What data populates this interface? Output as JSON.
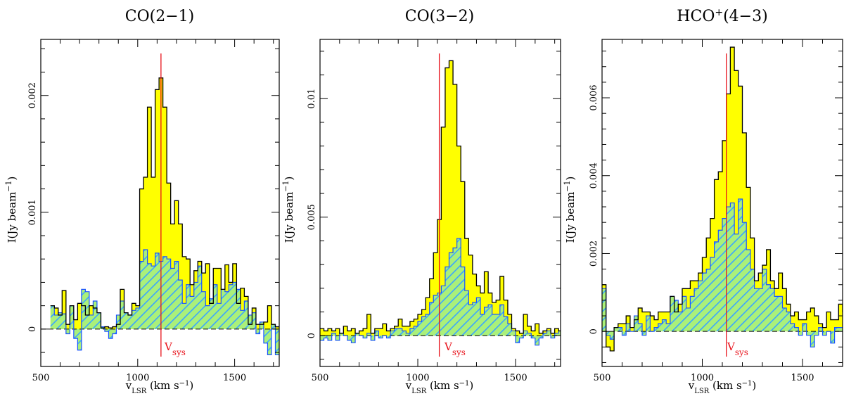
{
  "chart_data": [
    {
      "type": "step-area",
      "title": "CO(2−1)",
      "title_main": "CO(2−1)",
      "title_sup": "",
      "title_tail": "",
      "xlabel_main": "v",
      "xlabel_sub": "LSR",
      "xlabel_tail": " (km s",
      "xlabel_exp": "−1",
      "xlabel_close": ")",
      "ylabel_main": "I(Jy beam",
      "ylabel_exp": "−1",
      "ylabel_close": ")",
      "xlim": [
        500,
        1730
      ],
      "ylim": [
        -0.00032,
        0.00248
      ],
      "xticks": [
        500,
        1000,
        1500
      ],
      "xtick_labels": [
        "500",
        "1000",
        "1500"
      ],
      "yticks": [
        0,
        0.001,
        0.002
      ],
      "ytick_labels": [
        "0",
        "0.001",
        "0.002"
      ],
      "vsys": 1120,
      "vsys_label_main": "V",
      "vsys_label_sub": "sys",
      "x_start": 550,
      "x_step": 20,
      "series": [
        {
          "name": "total",
          "color": "#000000",
          "fill": "#ffff00",
          "values": [
            0.0002,
            0.00018,
            0.00012,
            0.00033,
            4e-05,
            0.0002,
            8e-05,
            0.00022,
            0.0002,
            0.00012,
            0.0002,
            0.00018,
            0.00014,
            1e-05,
            2e-05,
            1e-05,
            2e-05,
            4e-05,
            0.00034,
            0.00014,
            0.00012,
            0.00022,
            0.0002,
            0.0012,
            0.0013,
            0.0019,
            0.0013,
            0.00205,
            0.00215,
            0.0019,
            0.00125,
            0.0009,
            0.0011,
            0.0009,
            0.00062,
            0.0006,
            0.00038,
            0.0005,
            0.00058,
            0.00048,
            0.00056,
            0.00022,
            0.00052,
            0.00052,
            0.00034,
            0.00055,
            0.0004,
            0.00056,
            0.00022,
            0.00035,
            0.00028,
            4e-05,
            0.00018,
            4e-05,
            4e-05,
            6e-05,
            0.0002,
            4e-05,
            2e-05
          ]
        },
        {
          "name": "component",
          "color": "#1a53ff",
          "hatch": "#3aa6ff",
          "values": [
            0.0002,
            0.00012,
            0.00014,
            0.00013,
            -4e-05,
            0.0002,
            -8e-05,
            -0.00018,
            0.00034,
            0.00032,
            0.00012,
            0.00024,
            0.00014,
            2e-05,
            -2e-05,
            -8e-05,
            -4e-05,
            0.00012,
            0.00024,
            0.00014,
            0.00012,
            0.00016,
            0.00018,
            0.00058,
            0.00068,
            0.00056,
            0.00054,
            0.00065,
            0.00058,
            0.00062,
            0.0006,
            0.00052,
            0.00058,
            0.00042,
            0.00022,
            0.00038,
            0.00028,
            0.0004,
            0.00054,
            0.00032,
            0.0002,
            0.00026,
            0.00038,
            0.00022,
            0.00034,
            0.00032,
            0.00038,
            0.0004,
            0.00034,
            0.00016,
            0.00024,
            0.00012,
            0.00014,
            -4e-05,
            6e-05,
            -0.00012,
            -0.00022,
            4e-05,
            -0.00022
          ]
        }
      ]
    },
    {
      "type": "step-area",
      "title": "CO(3−2)",
      "title_main": "CO(3−2)",
      "title_sup": "",
      "title_tail": "",
      "xlabel_main": "v",
      "xlabel_sub": "LSR",
      "xlabel_tail": " (km s",
      "xlabel_exp": "−1",
      "xlabel_close": ")",
      "ylabel_main": "I(Jy beam",
      "ylabel_exp": "−1",
      "ylabel_close": ")",
      "xlim": [
        500,
        1730
      ],
      "ylim": [
        -0.0013,
        0.0125
      ],
      "xticks": [
        500,
        1000,
        1500
      ],
      "xtick_labels": [
        "500",
        "1000",
        "1500"
      ],
      "yticks": [
        0,
        0.005,
        0.01
      ],
      "ytick_labels": [
        "0",
        "0.005",
        "0.01"
      ],
      "vsys": 1110,
      "vsys_label_main": "V",
      "vsys_label_sub": "sys",
      "x_start": 500,
      "x_step": 20,
      "series": [
        {
          "name": "total",
          "color": "#000000",
          "fill": "#ffff00",
          "values": [
            0.0003,
            0.0002,
            0.0003,
            0.0002,
            0.0003,
            0.0001,
            0.0004,
            0.0002,
            0.0003,
            0.0001,
            0.0002,
            0.0003,
            0.0009,
            0.0001,
            0.0003,
            0.0003,
            0.0005,
            0.0002,
            0.0003,
            0.0004,
            0.0007,
            0.0004,
            0.0004,
            0.0006,
            0.0007,
            0.0009,
            0.0011,
            0.0016,
            0.0024,
            0.0035,
            0.0049,
            0.0088,
            0.0113,
            0.0116,
            0.0106,
            0.008,
            0.0065,
            0.0041,
            0.0034,
            0.0026,
            0.0021,
            0.0018,
            0.0027,
            0.0018,
            0.0014,
            0.0015,
            0.0025,
            0.0015,
            0.0009,
            0.0003,
            0.0002,
            0.0001,
            0.0009,
            0.0004,
            0.0002,
            0.0005,
            0.0001,
            0.0002,
            0.0003,
            0.0001,
            0.0003,
            0.0002
          ]
        },
        {
          "name": "component",
          "color": "#1a53ff",
          "hatch": "#3aa6ff",
          "values": [
            -0.0002,
            -0.0001,
            -0.0002,
            0.0001,
            -0.0002,
            0.0001,
            0,
            -0.0002,
            -0.0003,
            0.0001,
            0,
            -0.0001,
            0.0001,
            -0.0002,
            0.0002,
            -0.0001,
            0,
            -0.0001,
            0.0002,
            0.0003,
            0.0003,
            0.0002,
            0.0001,
            0.0003,
            0.0004,
            0.0006,
            0.0008,
            0.0009,
            0.0014,
            0.0017,
            0.0018,
            0.0021,
            0.0029,
            0.0035,
            0.0037,
            0.0041,
            0.0029,
            0.0019,
            0.0013,
            0.0014,
            0.0016,
            0.0009,
            0.0012,
            0.0013,
            0.0009,
            0.0009,
            0.0013,
            0.0008,
            0.0005,
            0.0002,
            -0.0003,
            -0.0001,
            0.0002,
            0.0001,
            -0.0001,
            -0.0004,
            -0.0001,
            0.0001,
            0.0002,
            -0.0001,
            0.0001,
            0.0002
          ]
        }
      ]
    },
    {
      "type": "step-area",
      "title": "HCO+(4−3)",
      "title_main": "HCO",
      "title_sup": "+",
      "title_tail": "(4−3)",
      "xlabel_main": "v",
      "xlabel_sub": "LSR",
      "xlabel_tail": " (km s",
      "xlabel_exp": "−1",
      "xlabel_close": ")",
      "ylabel_main": "I(Jy beam",
      "ylabel_exp": "−1",
      "ylabel_close": ")",
      "xlim": [
        500,
        1700
      ],
      "ylim": [
        -0.0009,
        0.0075
      ],
      "xticks": [
        500,
        1000,
        1500
      ],
      "xtick_labels": [
        "500",
        "1000",
        "1500"
      ],
      "yticks": [
        0,
        0.002,
        0.004,
        0.006
      ],
      "ytick_labels": [
        "0",
        "0.002",
        "0.004",
        "0.006"
      ],
      "vsys": 1120,
      "vsys_label_main": "V",
      "vsys_label_sub": "sys",
      "x_start": 500,
      "x_step": 20,
      "series": [
        {
          "name": "total",
          "color": "#000000",
          "fill": "#ffff00",
          "values": [
            0.0012,
            -0.0004,
            -0.0005,
            0.0001,
            0.0002,
            0.0002,
            0.0004,
            0.0001,
            0.0003,
            0.0006,
            0.0005,
            0.0005,
            0.0004,
            0.0003,
            0.0005,
            0.0005,
            0.0005,
            0.0009,
            0.0005,
            0.0007,
            0.0011,
            0.0011,
            0.0013,
            0.0013,
            0.0015,
            0.0019,
            0.0024,
            0.0029,
            0.0039,
            0.0041,
            0.0049,
            0.0061,
            0.0073,
            0.0067,
            0.0063,
            0.0051,
            0.0037,
            0.0024,
            0.0013,
            0.0015,
            0.0017,
            0.0021,
            0.0013,
            0.0011,
            0.0015,
            0.0011,
            0.0007,
            0.0004,
            0.0005,
            0.0003,
            0.0003,
            0.0005,
            0.0006,
            0.0004,
            0.0002,
            0.0001,
            0.0005,
            0.0003,
            0.0003,
            0.0007,
            0.0005
          ]
        },
        {
          "name": "component",
          "color": "#1a53ff",
          "hatch": "#3aa6ff",
          "values": [
            0.0011,
            -0.0001,
            -0.0002,
            0.0001,
            0.0001,
            -0.0001,
            0.0002,
            0,
            0.0004,
            0.0002,
            -0.0001,
            0.0004,
            0,
            0.0001,
            0.0002,
            0.0003,
            0.0002,
            0.0009,
            0.0008,
            0.0005,
            0.0009,
            0.0006,
            0.0009,
            0.0011,
            0.0013,
            0.0015,
            0.0016,
            0.0019,
            0.0023,
            0.0026,
            0.0029,
            0.0032,
            0.0033,
            0.0025,
            0.0034,
            0.0028,
            0.0021,
            0.0016,
            0.0011,
            0.0011,
            0.0016,
            0.0012,
            0.0011,
            0.0009,
            0.0009,
            0.0006,
            0.0005,
            0.0002,
            0.0001,
            -0.0001,
            0.0002,
            -0.0001,
            -0.0004,
            -0.0001,
            0.0001,
            -0.0001,
            0,
            -0.0003,
            0.0001,
            0.0001,
            0.0001
          ]
        }
      ]
    }
  ]
}
